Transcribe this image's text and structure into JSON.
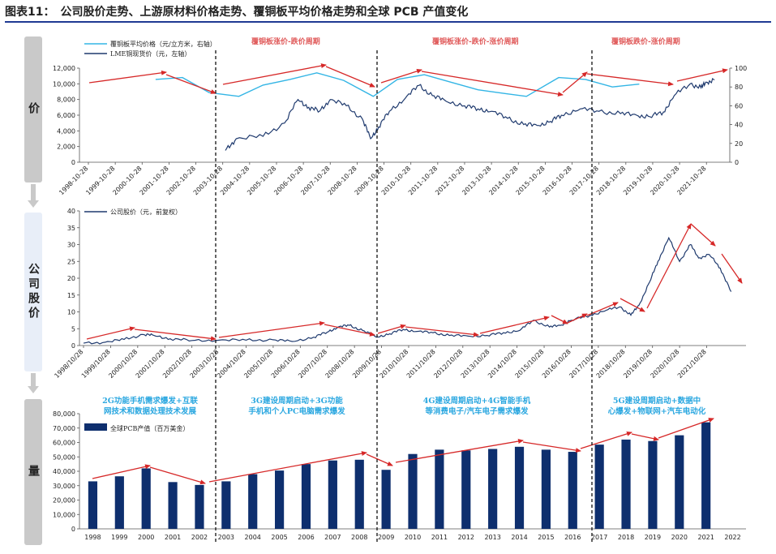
{
  "title": "图表11：　公司股价走势、上游原材料价格走势、覆铜板平均价格走势和全球 PCB 产值变化",
  "side_labels": {
    "price": "价",
    "stock": "公司股价",
    "volume": "量"
  },
  "colors": {
    "ccl": "#33b5e5",
    "lme": "#1f3a6e",
    "stock": "#1f3a6e",
    "bar": "#0e2f6e",
    "arrow": "#d62828",
    "phase": "#e05a5a",
    "driver": "#2aa7e0"
  },
  "chart_data": [
    {
      "type": "line",
      "title": "",
      "legend": [
        "覆铜板平均价格（元/立方米，右轴）",
        "LME铜现货价（元，左轴）"
      ],
      "phase_labels": [
        "覆铜板涨价-跌价周期",
        "覆铜板涨价-跌价-涨价周期",
        "覆铜板跌价-涨价周期"
      ],
      "x_labels": [
        "1998-10-28",
        "1999-10-28",
        "2000-10-28",
        "2001-10-28",
        "2002-10-28",
        "2003-10-28",
        "2004-10-28",
        "2005-10-28",
        "2006-10-28",
        "2007-10-28",
        "2008-10-28",
        "2009-10-28",
        "2010-10-28",
        "2011-10-28",
        "2012-10-28",
        "2013-10-28",
        "2014-10-28",
        "2015-10-28",
        "2016-10-28",
        "2017-10-28",
        "2018-10-28",
        "2019-10-28",
        "2020-10-28",
        "2021-10-28"
      ],
      "y_left_ticks": [
        "0",
        "2,000",
        "4,000",
        "6,000",
        "8,000",
        "10,000",
        "12,000"
      ],
      "y_right_ticks": [
        "0",
        "20",
        "40",
        "60",
        "80",
        "100"
      ],
      "ylim_left": [
        0,
        12000
      ],
      "ylim_right": [
        0,
        100
      ],
      "series": [
        {
          "name": "覆铜板平均价格",
          "axis": "right",
          "x": [
            2.5,
            3.5,
            4.5,
            5.6,
            6.5,
            7.5,
            8.5,
            9.5,
            10.6,
            11.5,
            12.5,
            13.5,
            14.5,
            15.5,
            16.3,
            17.5,
            18.5,
            19.5,
            20.5
          ],
          "values": [
            88,
            90,
            74,
            70,
            82,
            88,
            95,
            87,
            70,
            88,
            93,
            85,
            77,
            73,
            70,
            90,
            88,
            80,
            83
          ]
        },
        {
          "name": "LME铜现货价",
          "axis": "left",
          "x": [
            5.1,
            5.5,
            6.5,
            7.3,
            7.8,
            8.2,
            8.6,
            9.0,
            9.6,
            10.2,
            10.5,
            10.8,
            11.2,
            11.8,
            12.3,
            12.8,
            13.3,
            14.0,
            14.5,
            15.0,
            15.6,
            16.2,
            16.7,
            17.2,
            17.6,
            18.3,
            19.0,
            19.8,
            20.4,
            20.9,
            21.4,
            21.8,
            22.4,
            22.8,
            23.0,
            23.3
          ],
          "values": [
            1500,
            3000,
            3300,
            5000,
            8000,
            7000,
            6500,
            8000,
            7200,
            5500,
            3000,
            4500,
            6500,
            8200,
            9800,
            8500,
            7800,
            7200,
            6800,
            6500,
            5600,
            4800,
            4700,
            5200,
            6000,
            6800,
            6500,
            6200,
            6000,
            5800,
            6400,
            8500,
            10000,
            9500,
            10200,
            10500
          ]
        }
      ]
    },
    {
      "type": "line",
      "legend": [
        "公司股价（元，前复权）"
      ],
      "x_labels": [
        "1998/10/28",
        "1999/10/28",
        "2000/10/28",
        "2001/10/28",
        "2002/10/28",
        "2003/10/28",
        "2004/10/28",
        "2005/10/28",
        "2006/10/28",
        "2007/10/28",
        "2008/10/28",
        "2009/10/28",
        "2010/10/28",
        "2011/10/28",
        "2012/10/28",
        "2013/10/28",
        "2014/10/28",
        "2015/10/28",
        "2016/10/28",
        "2017/10/28",
        "2018/10/28",
        "2019/10/28",
        "2020/10/28",
        "2021/10/28"
      ],
      "y_ticks": [
        "0",
        "5",
        "10",
        "15",
        "20",
        "25",
        "30",
        "35",
        "40"
      ],
      "ylim": [
        0,
        40
      ],
      "series": [
        {
          "name": "公司股价",
          "x": [
            0,
            0.8,
            1.5,
            2.2,
            2.6,
            3.2,
            4.0,
            5.0,
            6.0,
            7.0,
            7.7,
            8.5,
            9.0,
            9.4,
            9.8,
            10.3,
            10.8,
            11.3,
            11.8,
            12.3,
            12.9,
            13.5,
            14.2,
            14.9,
            15.5,
            16.1,
            16.6,
            17.2,
            17.6,
            18.0,
            18.7,
            19.3,
            19.8,
            20.2,
            20.5,
            20.9,
            21.2,
            21.6,
            22.0,
            22.4,
            22.7,
            23.1,
            23.5,
            23.9
          ],
          "values": [
            0.7,
            1.0,
            1.8,
            3.3,
            3.0,
            2.0,
            1.5,
            1.6,
            1.6,
            1.7,
            1.2,
            2.5,
            4.0,
            5.5,
            6.0,
            4.5,
            2.5,
            3.5,
            4.8,
            4.2,
            3.8,
            3.0,
            2.8,
            3.0,
            3.8,
            4.5,
            7.5,
            5.5,
            6.0,
            7.5,
            9.0,
            10.5,
            11.5,
            9.0,
            12.0,
            19.0,
            25.0,
            32.0,
            25.0,
            30.0,
            26.0,
            27.0,
            23.0,
            16.0
          ]
        }
      ]
    },
    {
      "type": "bar",
      "legend": [
        "全球PCB产值（百万美金）"
      ],
      "categories": [
        "1998",
        "1999",
        "2000",
        "2001",
        "2002",
        "2003",
        "2004",
        "2005",
        "2006",
        "2007",
        "2008",
        "2009",
        "2010",
        "2011",
        "2012",
        "2013",
        "2014",
        "2015",
        "2016",
        "2017",
        "2018",
        "2019",
        "2020",
        "2021",
        "2022"
      ],
      "values": [
        33000,
        36500,
        42000,
        32500,
        30500,
        33000,
        38000,
        40500,
        45000,
        47500,
        48000,
        41000,
        52000,
        55000,
        54500,
        55500,
        57000,
        55000,
        53500,
        58500,
        62000,
        61000,
        65000,
        74000,
        null
      ],
      "y_ticks": [
        "0",
        "10,000",
        "20,000",
        "30,000",
        "40,000",
        "50,000",
        "60,000",
        "70,000",
        "80,000"
      ],
      "ylim": [
        0,
        80000
      ],
      "drivers": [
        [
          "2G功能手机需求爆发+互联",
          "网技术和数据处理技术发展"
        ],
        [
          "3G建设周期启动+3G功能",
          "手机和个人PC电脑需求爆发"
        ],
        [
          "4G建设周期启动+4G智能手机",
          "等消费电子/汽车电子需求爆发"
        ],
        [
          "5G建设周期启动+数据中",
          "心爆发+物联网+汽车电动化"
        ]
      ]
    }
  ]
}
